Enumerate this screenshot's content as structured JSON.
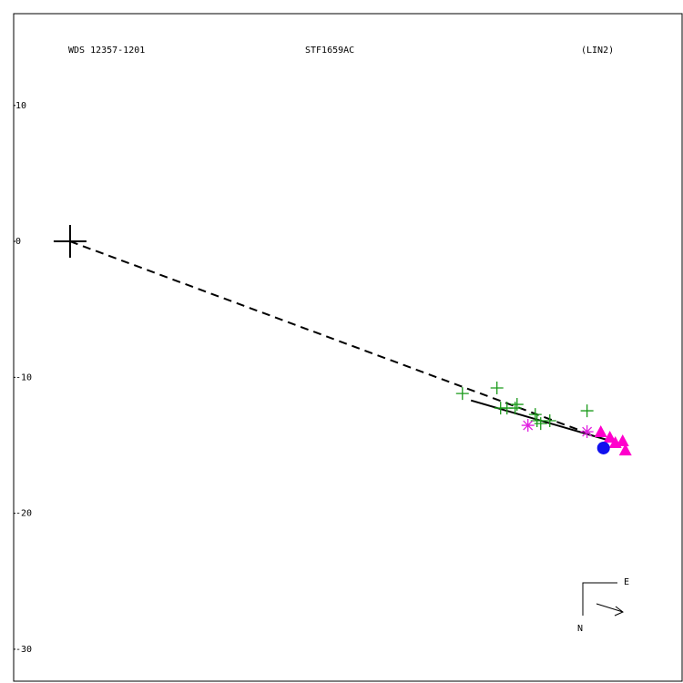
{
  "chart_data": {
    "type": "scatter",
    "title": "STF1659AC",
    "annotations": [
      "WDS 12357-1201",
      "(LIN2)"
    ],
    "compass": [
      "E",
      "N"
    ],
    "xlim": [
      -4.15,
      45.1
    ],
    "ylim": [
      -32.35,
      16.75
    ],
    "yticks": [
      10,
      0,
      -10,
      -20,
      -30
    ],
    "grid": false,
    "series": [
      {
        "marker": "cross",
        "color": "#000000",
        "x": [
          0
        ],
        "y": [
          0
        ]
      },
      {
        "marker": "dashed-line",
        "color": "#000000",
        "x": [
          0,
          38.6
        ],
        "y": [
          0,
          -14.3
        ]
      },
      {
        "marker": "solid-line",
        "color": "#000000",
        "x": [
          29.5,
          40.9
        ],
        "y": [
          -11.7,
          -15.0
        ]
      },
      {
        "marker": "plus",
        "color": "#1a9a1a",
        "x": [
          28.87,
          31.41,
          31.68,
          32.15,
          32.89,
          32.75,
          34.23,
          34.36,
          34.63,
          35.3,
          38.04
        ],
        "y": [
          -11.19,
          -10.78,
          -12.26,
          -12.26,
          -11.99,
          -12.26,
          -12.73,
          -13.19,
          -13.4,
          -13.19,
          -12.46
        ]
      },
      {
        "marker": "asterisk",
        "color": "#e020e0",
        "x": [
          33.69,
          38.04
        ],
        "y": [
          -13.53,
          -14.0
        ]
      },
      {
        "marker": "triangle",
        "color": "#ff00cc",
        "x": [
          39.05,
          39.72,
          40.66,
          40.86,
          40.12
        ],
        "y": [
          -14.0,
          -14.4,
          -14.67,
          -15.34,
          -14.8
        ]
      },
      {
        "marker": "circle",
        "color": "#1010ee",
        "x": [
          39.25
        ],
        "y": [
          -15.2
        ]
      }
    ]
  }
}
